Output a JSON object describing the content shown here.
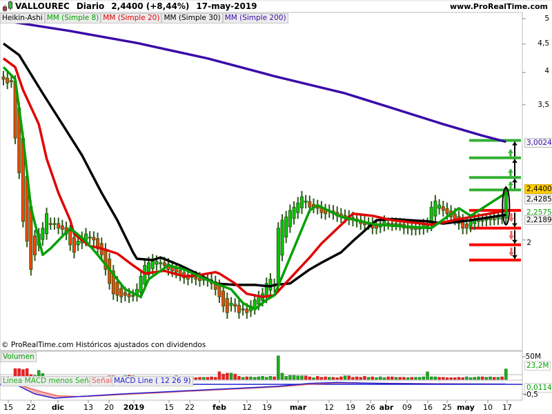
{
  "header": {
    "symbol": "VALLOUREC",
    "period": "Diario",
    "price_change": "2,4400 (+8,44%)",
    "date": "17-may-2019",
    "site": "www.ProRealTime.com"
  },
  "legend": [
    {
      "label": "Heikin-Ashi",
      "color": "#000000"
    },
    {
      "label": "MM (Simple 8)",
      "color": "#00a000"
    },
    {
      "label": "MM (Simple 20)",
      "color": "#e00000"
    },
    {
      "label": "MM (Simple 30)",
      "color": "#000000"
    },
    {
      "label": "MM (Simple 200)",
      "color": "#3a0aa8"
    }
  ],
  "footer": "© ProRealTime.com Históricos ajustados con dividendos",
  "price_axis": {
    "ticks": [
      "5",
      "4,5",
      "4",
      "3,5",
      "2"
    ],
    "tick_values": [
      5,
      4.5,
      4,
      3.5,
      2
    ],
    "scale": "log",
    "labels": {
      "ma200": "3,0024",
      "last": "2,4400",
      "ma8": "2,4285",
      "ma20": "2,2575",
      "ma30": "2,2189"
    }
  },
  "volume": {
    "label": "Volumen",
    "max_tick": "50M",
    "last": "23,2M"
  },
  "macd": {
    "label_hist": "Línea MACD menos Señal",
    "label_signal": "Señal",
    "label_line": "MACD Line ( 12 26 9)",
    "tick": "-0,5",
    "last": "0,0114"
  },
  "x_axis": [
    "15",
    "22",
    "dic",
    "13",
    "20",
    "2019",
    "15",
    "22",
    "feb",
    "12",
    "19",
    "mar",
    "12",
    "19",
    "26",
    "abr",
    "09",
    "16",
    "25",
    "may",
    "10",
    "17"
  ],
  "colors": {
    "up": "#00cc00",
    "down": "#ff4400",
    "wick": "#2d5a1b",
    "ma8": "#00a000",
    "ma20": "#e00000",
    "ma30": "#000000",
    "ma200": "#3a0aa8",
    "last_bg": "#ffcc00"
  },
  "chart_data": {
    "type": "candlestick",
    "style": "Heikin-Ashi",
    "closes": [
      3.89,
      3.83,
      3.85,
      3.05,
      2.64,
      2.16,
      1.99,
      1.77,
      1.88,
      2.05,
      2.1,
      2.23,
      2.14,
      2.14,
      2.1,
      2.09,
      2.05,
      1.96,
      1.9,
      1.99,
      2.02,
      2.05,
      2.02,
      2.0,
      1.93,
      1.88,
      1.77,
      1.67,
      1.6,
      1.59,
      1.58,
      1.59,
      1.58,
      1.59,
      1.63,
      1.72,
      1.8,
      1.82,
      1.84,
      1.83,
      1.82,
      1.8,
      1.77,
      1.76,
      1.75,
      1.73,
      1.71,
      1.7,
      1.72,
      1.7,
      1.69,
      1.7,
      1.69,
      1.67,
      1.63,
      1.58,
      1.52,
      1.48,
      1.54,
      1.52,
      1.48,
      1.5,
      1.48,
      1.52,
      1.56,
      1.58,
      1.6,
      1.67,
      1.7,
      1.65,
      2.1,
      2.17,
      2.2,
      2.26,
      2.29,
      2.33,
      2.39,
      2.35,
      2.29,
      2.29,
      2.28,
      2.24,
      2.23,
      2.26,
      2.23,
      2.21,
      2.2,
      2.2,
      2.18,
      2.17,
      2.16,
      2.14,
      2.13,
      2.14,
      2.1,
      2.1,
      2.14,
      2.16,
      2.14,
      2.13,
      2.14,
      2.13,
      2.1,
      2.1,
      2.09,
      2.09,
      2.1,
      2.13,
      2.14,
      2.29,
      2.35,
      2.31,
      2.26,
      2.23,
      2.2,
      2.18,
      2.14,
      2.1,
      2.1,
      2.16,
      2.18,
      2.18,
      2.17,
      2.18,
      2.19,
      2.18,
      2.2,
      2.19,
      2.44
    ],
    "ma8": [
      [
        0,
        4.09
      ],
      [
        3,
        3.89
      ],
      [
        5,
        3.05
      ],
      [
        7,
        2.29
      ],
      [
        10,
        1.88
      ],
      [
        12,
        1.93
      ],
      [
        17,
        2.1
      ],
      [
        21,
        1.99
      ],
      [
        24,
        1.88
      ],
      [
        27,
        1.77
      ],
      [
        31,
        1.63
      ],
      [
        35,
        1.58
      ],
      [
        37,
        1.7
      ],
      [
        42,
        1.8
      ],
      [
        46,
        1.77
      ],
      [
        50,
        1.72
      ],
      [
        54,
        1.67
      ],
      [
        58,
        1.63
      ],
      [
        61,
        1.54
      ],
      [
        64,
        1.5
      ],
      [
        67,
        1.56
      ],
      [
        69,
        1.59
      ],
      [
        78,
        2.26
      ],
      [
        80,
        2.31
      ],
      [
        86,
        2.2
      ],
      [
        95,
        2.13
      ],
      [
        109,
        2.1
      ],
      [
        116,
        2.28
      ],
      [
        119,
        2.21
      ],
      [
        128,
        2.4285
      ]
    ],
    "ma20": [
      [
        0,
        4.24
      ],
      [
        3,
        4.09
      ],
      [
        5,
        3.72
      ],
      [
        9,
        3.23
      ],
      [
        11,
        2.8
      ],
      [
        14,
        2.43
      ],
      [
        17,
        2.17
      ],
      [
        18,
        2.05
      ],
      [
        22,
        1.95
      ],
      [
        25,
        1.93
      ],
      [
        29,
        1.89
      ],
      [
        33,
        1.8
      ],
      [
        36,
        1.74
      ],
      [
        41,
        1.76
      ],
      [
        46,
        1.72
      ],
      [
        50,
        1.73
      ],
      [
        54,
        1.75
      ],
      [
        55,
        1.74
      ],
      [
        59,
        1.67
      ],
      [
        62,
        1.6
      ],
      [
        66,
        1.58
      ],
      [
        69,
        1.59
      ],
      [
        78,
        1.86
      ],
      [
        81,
        1.97
      ],
      [
        89,
        2.23
      ],
      [
        94,
        2.21
      ],
      [
        99,
        2.17
      ],
      [
        109,
        2.13
      ],
      [
        116,
        2.18
      ],
      [
        128,
        2.2575
      ]
    ],
    "ma30": [
      [
        0,
        4.51
      ],
      [
        4,
        4.3
      ],
      [
        10,
        3.67
      ],
      [
        15,
        3.23
      ],
      [
        20,
        2.84
      ],
      [
        25,
        2.43
      ],
      [
        29,
        2.17
      ],
      [
        33,
        1.9
      ],
      [
        34,
        1.85
      ],
      [
        38,
        1.84
      ],
      [
        40,
        1.86
      ],
      [
        45,
        1.8
      ],
      [
        50,
        1.73
      ],
      [
        54,
        1.67
      ],
      [
        59,
        1.66
      ],
      [
        64,
        1.66
      ],
      [
        68,
        1.65
      ],
      [
        69,
        1.66
      ],
      [
        73,
        1.67
      ],
      [
        78,
        1.77
      ],
      [
        81,
        1.82
      ],
      [
        86,
        1.9
      ],
      [
        89,
        1.99
      ],
      [
        95,
        2.17
      ],
      [
        99,
        2.18
      ],
      [
        108,
        2.16
      ],
      [
        112,
        2.14
      ],
      [
        119,
        2.17
      ],
      [
        128,
        2.2189
      ]
    ],
    "ma200": [
      [
        0,
        4.96
      ],
      [
        17,
        4.75
      ],
      [
        34,
        4.52
      ],
      [
        52,
        4.24
      ],
      [
        69,
        3.94
      ],
      [
        87,
        3.67
      ],
      [
        98,
        3.47
      ],
      [
        112,
        3.23
      ],
      [
        122,
        3.08
      ],
      [
        128,
        3.0024
      ]
    ],
    "levels_up": [
      3.02,
      2.81,
      2.59,
      2.46
    ],
    "levels_down": [
      2.26,
      2.1,
      1.96,
      1.84
    ],
    "volume_m": [
      6,
      6,
      5,
      24,
      24,
      22,
      24,
      11,
      9,
      20,
      13,
      6,
      5,
      5,
      6,
      6,
      7,
      5,
      6,
      6,
      5,
      6,
      5,
      5,
      4,
      6,
      6,
      8,
      8,
      6,
      6,
      8,
      9,
      8,
      7,
      7,
      6,
      6,
      6,
      4,
      5,
      4,
      6,
      5,
      8,
      6,
      6,
      5,
      6,
      4,
      5,
      5,
      5,
      6,
      5,
      17,
      12,
      14,
      14,
      12,
      7,
      5,
      6,
      6,
      5,
      6,
      7,
      5,
      7,
      6,
      52,
      14,
      7,
      9,
      9,
      8,
      8,
      8,
      6,
      4,
      7,
      5,
      6,
      5,
      5,
      4,
      6,
      8,
      8,
      5,
      6,
      5,
      7,
      5,
      6,
      4,
      6,
      4,
      6,
      6,
      5,
      5,
      5,
      4,
      5,
      5,
      5,
      6,
      17,
      6,
      6,
      5,
      5,
      4,
      4,
      4,
      5,
      4,
      6,
      4,
      5,
      6,
      6,
      5,
      6,
      5,
      5,
      6,
      23.2
    ],
    "macd_line": [
      [
        0,
        0
      ],
      [
        3,
        0
      ],
      [
        8,
        -0.5
      ],
      [
        13,
        -0.72
      ],
      [
        20,
        -0.62
      ],
      [
        30,
        -0.5
      ],
      [
        45,
        -0.35
      ],
      [
        60,
        -0.2
      ],
      [
        70,
        -0.1
      ],
      [
        78,
        0.05
      ],
      [
        85,
        0.1
      ],
      [
        95,
        0.05
      ],
      [
        110,
        0.02
      ],
      [
        128,
        0.0114
      ]
    ],
    "macd_signal": [
      [
        0,
        0
      ],
      [
        5,
        -0.1
      ],
      [
        10,
        -0.4
      ],
      [
        14,
        -0.6
      ],
      [
        20,
        -0.64
      ],
      [
        30,
        -0.53
      ],
      [
        45,
        -0.38
      ],
      [
        60,
        -0.23
      ],
      [
        70,
        -0.13
      ],
      [
        78,
        0.0
      ],
      [
        85,
        0.07
      ],
      [
        95,
        0.06
      ],
      [
        110,
        0.03
      ],
      [
        128,
        0.01
      ]
    ]
  }
}
